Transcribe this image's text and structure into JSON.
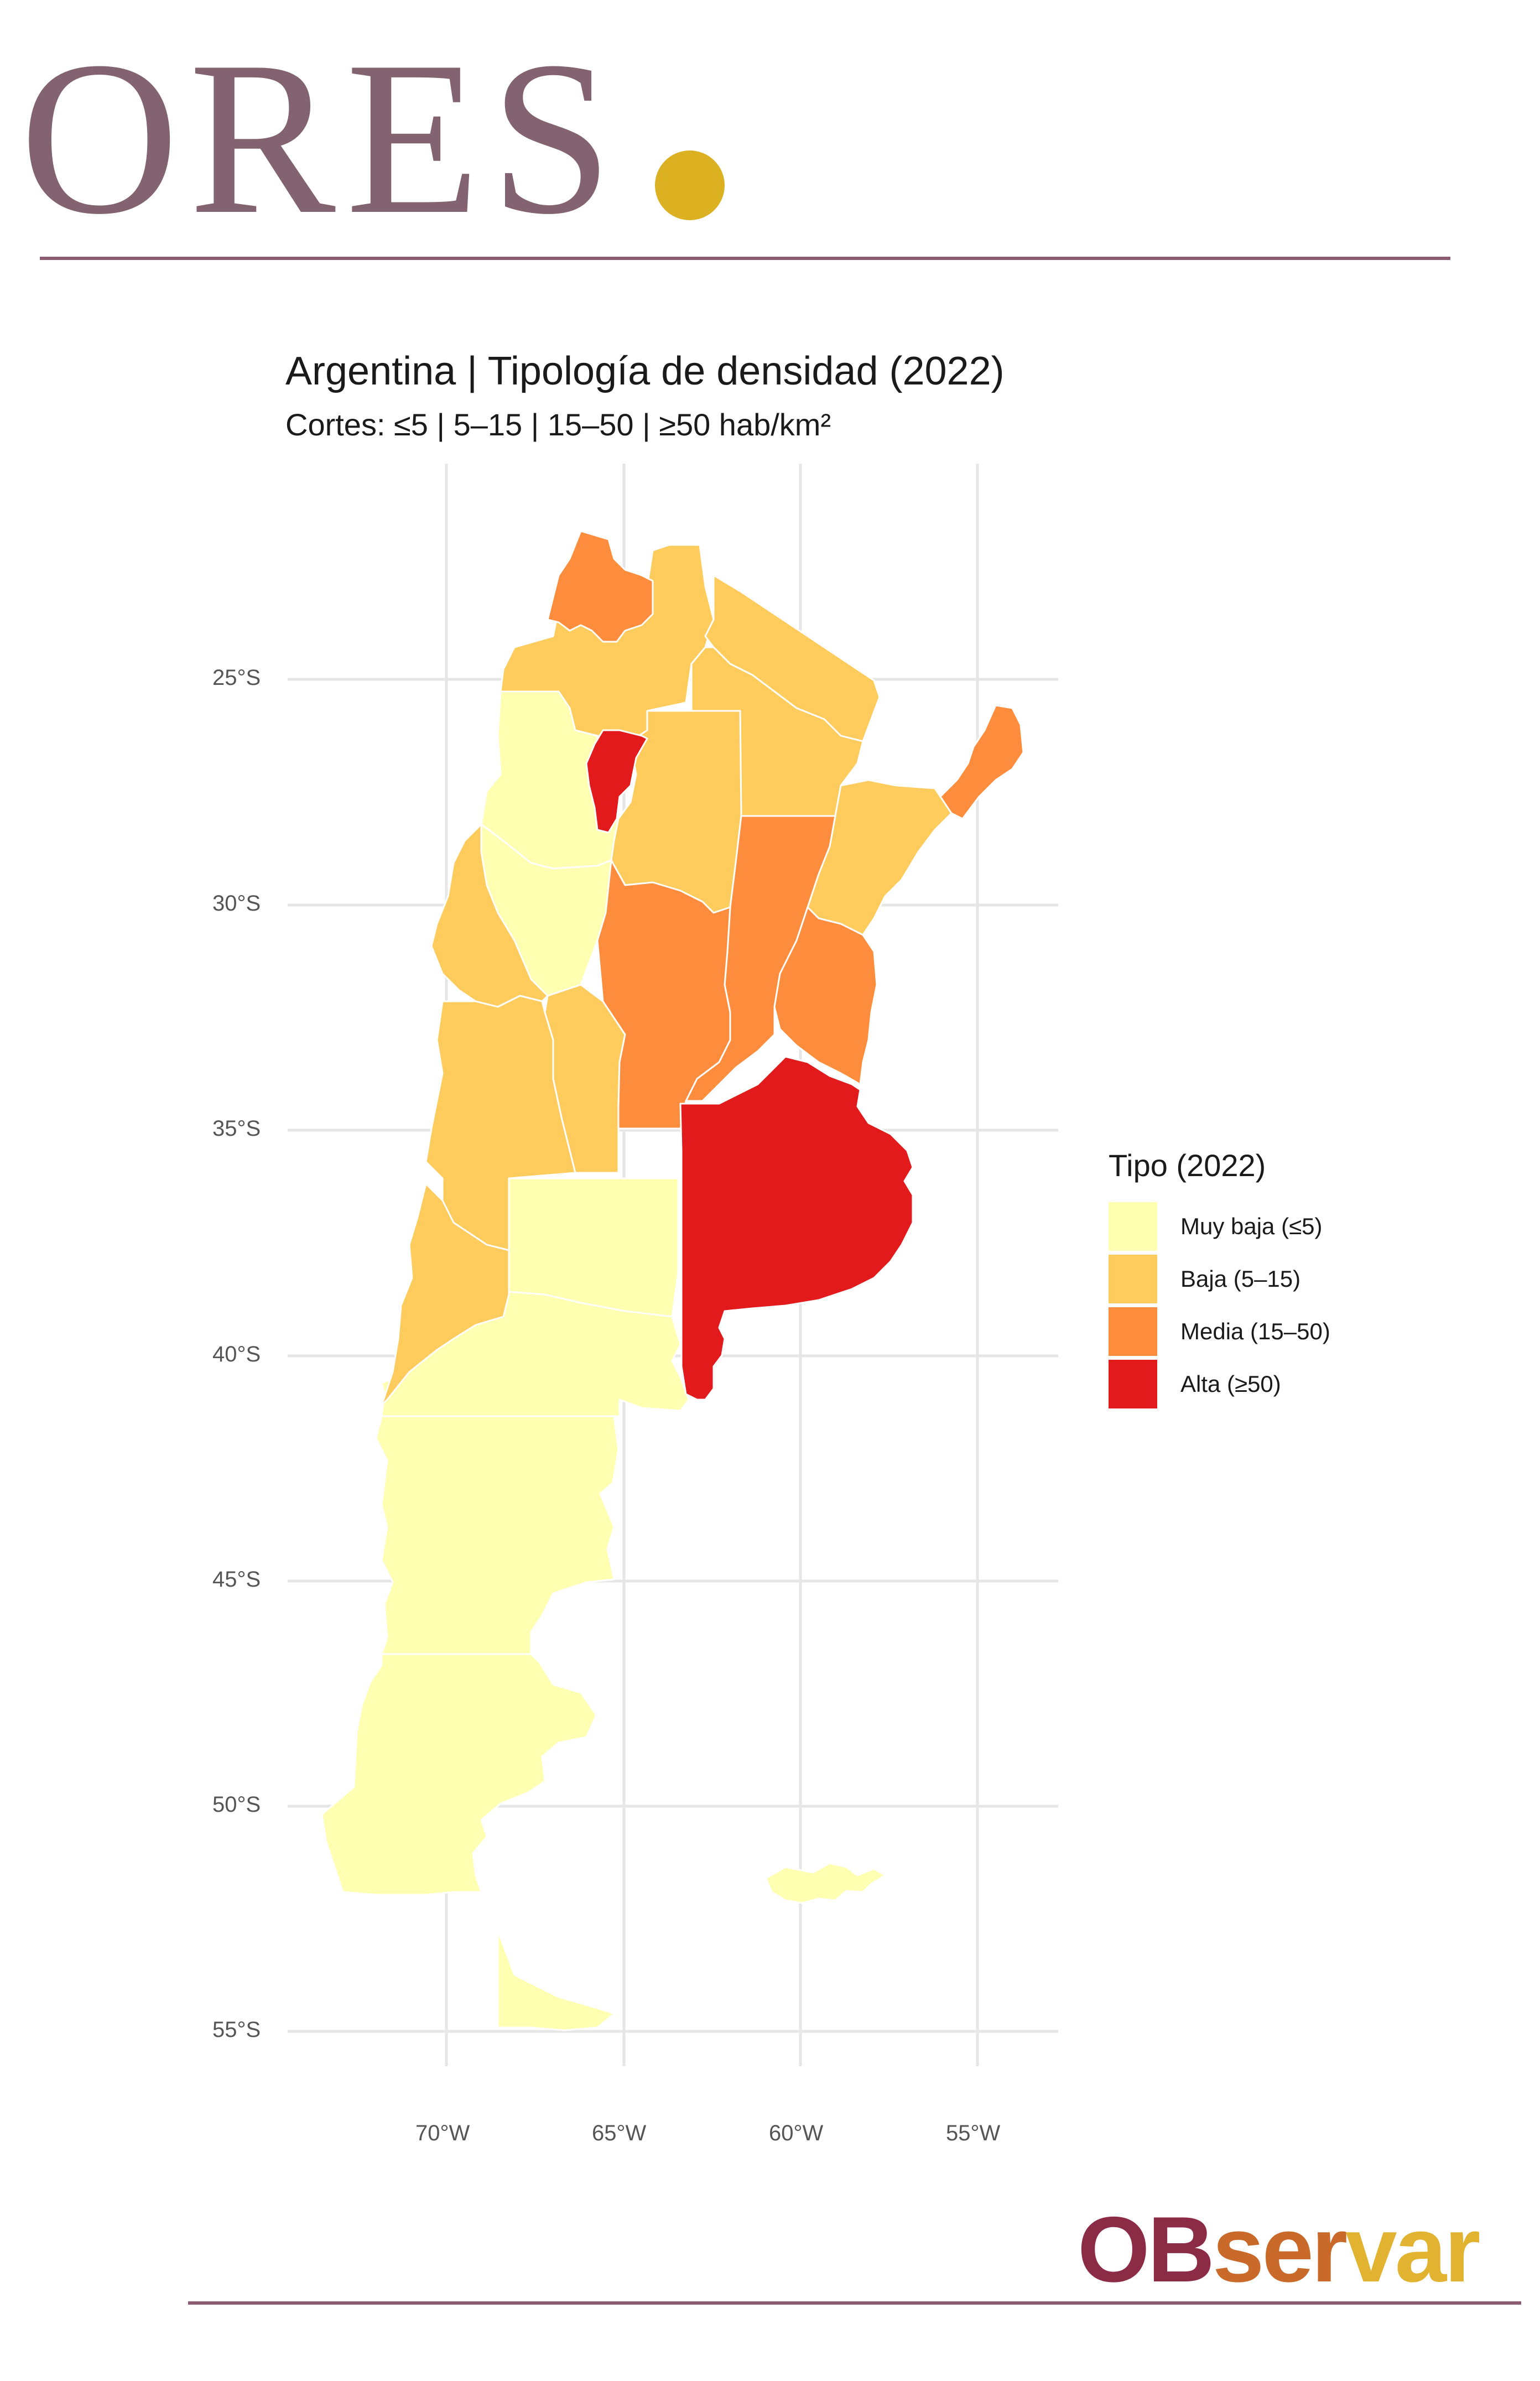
{
  "header": {
    "brand_name": "ORES",
    "brand_dot_color": "#dbb021",
    "brand_color": "#82636f"
  },
  "map": {
    "title": "Argentina | Tipología de densidad (2022)",
    "subtitle": "Cortes: ≤5 | 5–15 | 15–50 | ≥50 hab/km²",
    "lat_ticks": [
      "25°S",
      "30°S",
      "35°S",
      "40°S",
      "45°S",
      "50°S",
      "55°S"
    ],
    "lon_ticks": [
      "70°W",
      "65°W",
      "60°W",
      "55°W"
    ],
    "legend": {
      "title": "Tipo (2022)",
      "items": [
        {
          "label": "Muy baja (≤5)",
          "color": "#ffffb2"
        },
        {
          "label": "Baja (5–15)",
          "color": "#fecc5c"
        },
        {
          "label": "Media (15–50)",
          "color": "#fd8d3c"
        },
        {
          "label": "Alta (≥50)",
          "color": "#e31a1c"
        }
      ]
    },
    "provinces": [
      {
        "name": "Jujuy",
        "class": "Media (15–50)"
      },
      {
        "name": "Salta",
        "class": "Baja (5–15)"
      },
      {
        "name": "Formosa",
        "class": "Baja (5–15)"
      },
      {
        "name": "Chaco",
        "class": "Baja (5–15)"
      },
      {
        "name": "Misiones",
        "class": "Media (15–50)"
      },
      {
        "name": "Catamarca",
        "class": "Muy baja (≤5)"
      },
      {
        "name": "Tucumán",
        "class": "Alta (≥50)"
      },
      {
        "name": "Santiago del Estero",
        "class": "Baja (5–15)"
      },
      {
        "name": "Corrientes",
        "class": "Baja (5–15)"
      },
      {
        "name": "Santa Fe",
        "class": "Media (15–50)"
      },
      {
        "name": "La Rioja",
        "class": "Muy baja (≤5)"
      },
      {
        "name": "San Juan",
        "class": "Baja (5–15)"
      },
      {
        "name": "Córdoba",
        "class": "Media (15–50)"
      },
      {
        "name": "Entre Ríos",
        "class": "Media (15–50)"
      },
      {
        "name": "San Luis",
        "class": "Baja (5–15)"
      },
      {
        "name": "Mendoza",
        "class": "Baja (5–15)"
      },
      {
        "name": "Buenos Aires",
        "class": "Alta (≥50)"
      },
      {
        "name": "La Pampa",
        "class": "Muy baja (≤5)"
      },
      {
        "name": "Neuquén",
        "class": "Baja (5–15)"
      },
      {
        "name": "Río Negro",
        "class": "Muy baja (≤5)"
      },
      {
        "name": "Chubut",
        "class": "Muy baja (≤5)"
      },
      {
        "name": "Santa Cruz",
        "class": "Muy baja (≤5)"
      },
      {
        "name": "Tierra del Fuego",
        "class": "Muy baja (≤5)"
      },
      {
        "name": "Islas Malvinas",
        "class": "Muy baja (≤5)"
      }
    ]
  },
  "footer": {
    "brand_part1": "OB",
    "brand_part2": "ser",
    "brand_part3": "var",
    "brand_colors": [
      "#8c2b45",
      "#c96a2a",
      "#e2b331"
    ]
  }
}
